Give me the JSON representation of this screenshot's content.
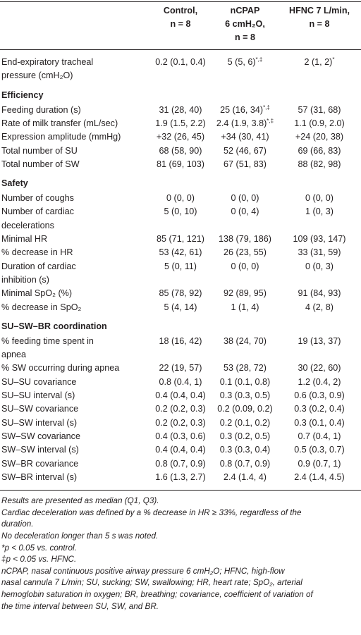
{
  "table": {
    "header": {
      "columns": [
        [
          "Control,",
          "n = 8"
        ],
        [
          "nCPAP",
          "6 cmH₂O,",
          "n = 8"
        ],
        [
          "HFNC 7 L/min,",
          "n = 8"
        ]
      ]
    },
    "rows": [
      {
        "label": [
          "End-expiratory tracheal",
          "pressure (cmH₂O)"
        ],
        "values": [
          "0.2 (0.1, 0.4)",
          {
            "text": "5 (5, 6)",
            "sup": "*,‡"
          },
          {
            "text": "2 (1, 2)",
            "sup": "*"
          }
        ]
      },
      {
        "section": "Efficiency"
      },
      {
        "label": [
          "Feeding duration (s)"
        ],
        "values": [
          "31 (28, 40)",
          {
            "text": "25 (16, 34)",
            "sup": "*,‡"
          },
          "57 (31, 68)"
        ]
      },
      {
        "label": [
          "Rate of milk transfer (mL/sec)"
        ],
        "values": [
          "1.9 (1.5, 2.2)",
          {
            "text": "2.4 (1.9, 3.8)",
            "sup": "*,‡"
          },
          "1.1 (0.9, 2.0)"
        ]
      },
      {
        "label": [
          "Expression amplitude (mmHg)"
        ],
        "values": [
          "+32 (26, 45)",
          "+34 (30, 41)",
          "+24 (20, 38)"
        ]
      },
      {
        "label": [
          "Total number of SU"
        ],
        "values": [
          "68 (58, 90)",
          "52 (46, 67)",
          "69 (66, 83)"
        ]
      },
      {
        "label": [
          "Total number of SW"
        ],
        "values": [
          "81 (69, 103)",
          "67 (51, 83)",
          "88 (82, 98)"
        ]
      },
      {
        "section": "Safety"
      },
      {
        "label": [
          "Number of coughs"
        ],
        "values": [
          "0 (0, 0)",
          "0 (0, 0)",
          "0 (0, 0)"
        ]
      },
      {
        "label": [
          "Number of cardiac",
          "decelerations"
        ],
        "values": [
          "5 (0, 10)",
          "0 (0, 4)",
          "1 (0, 3)"
        ]
      },
      {
        "label": [
          "Minimal HR"
        ],
        "values": [
          "85 (71, 121)",
          "138 (79, 186)",
          "109 (93, 147)"
        ]
      },
      {
        "label": [
          "% decrease in HR"
        ],
        "values": [
          "53 (42, 61)",
          "26 (23, 55)",
          "33 (31, 59)"
        ]
      },
      {
        "label": [
          "Duration of cardiac",
          "inhibition (s)"
        ],
        "values": [
          "5 (0, 11)",
          "0 (0, 0)",
          "0 (0, 3)"
        ]
      },
      {
        "label": [
          "Minimal SpO₂ (%)"
        ],
        "values": [
          "85 (78, 92)",
          "92 (89, 95)",
          "91 (84, 93)"
        ]
      },
      {
        "label": [
          "% decrease in SpO₂"
        ],
        "values": [
          "5 (4, 14)",
          "1 (1, 4)",
          "4 (2, 8)"
        ]
      },
      {
        "section": "SU–SW–BR coordination"
      },
      {
        "label": [
          "% feeding time spent in",
          "apnea"
        ],
        "values": [
          "18 (16, 42)",
          "38 (24, 70)",
          "19 (13, 37)"
        ]
      },
      {
        "label": [
          "% SW occurring during apnea"
        ],
        "values": [
          "22 (19, 57)",
          "53 (28, 72)",
          "30 (22, 60)"
        ]
      },
      {
        "label": [
          "SU–SU covariance"
        ],
        "values": [
          "0.8 (0.4, 1)",
          "0.1 (0.1, 0.8)",
          "1.2 (0.4, 2)"
        ]
      },
      {
        "label": [
          "SU–SU interval (s)"
        ],
        "values": [
          "0.4 (0.4, 0.4)",
          "0.3 (0.3, 0.5)",
          "0.6 (0.3, 0.9)"
        ]
      },
      {
        "label": [
          "SU–SW covariance"
        ],
        "values": [
          "0.2 (0.2, 0.3)",
          "0.2 (0.09, 0.2)",
          "0.3 (0.2, 0.4)"
        ]
      },
      {
        "label": [
          "SU–SW interval (s)"
        ],
        "values": [
          "0.2 (0.2, 0.3)",
          "0.2 (0.1, 0.2)",
          "0.3 (0.1, 0.4)"
        ]
      },
      {
        "label": [
          "SW–SW covariance"
        ],
        "values": [
          "0.4 (0.3, 0.6)",
          "0.3 (0.2, 0.5)",
          "0.7 (0.4, 1)"
        ]
      },
      {
        "label": [
          "SW–SW interval (s)"
        ],
        "values": [
          "0.4 (0.4, 0.4)",
          "0.3 (0.3, 0.4)",
          "0.5 (0.3, 0.7)"
        ]
      },
      {
        "label": [
          "SW–BR covariance"
        ],
        "values": [
          "0.8 (0.7, 0.9)",
          "0.8 (0.7, 0.9)",
          "0.9 (0.7, 1)"
        ]
      },
      {
        "label": [
          "SW–BR interval (s)"
        ],
        "values": [
          "1.6 (1.3, 2.7)",
          "2.4 (1.4, 4)",
          "2.4 (1.4, 4.5)"
        ]
      }
    ]
  },
  "footnotes": [
    "Results are presented as median (Q1, Q3).",
    "Cardiac deceleration was defined by a % decrease in HR ≥ 33%, regardless of the",
    "duration.",
    "No deceleration longer than 5 s was noted.",
    "*p < 0.05 vs. control.",
    "‡p < 0.05 vs. HFNC.",
    "nCPAP, nasal continuous positive airway pressure 6 cmH₂O; HFNC, high-flow",
    "nasal cannula 7 L/min; SU, sucking; SW, swallowing; HR, heart rate; SpO₂, arterial",
    "hemoglobin saturation in oxygen; BR, breathing; covariance, coefficient of variation of",
    "the time interval between SU, SW, and BR."
  ]
}
